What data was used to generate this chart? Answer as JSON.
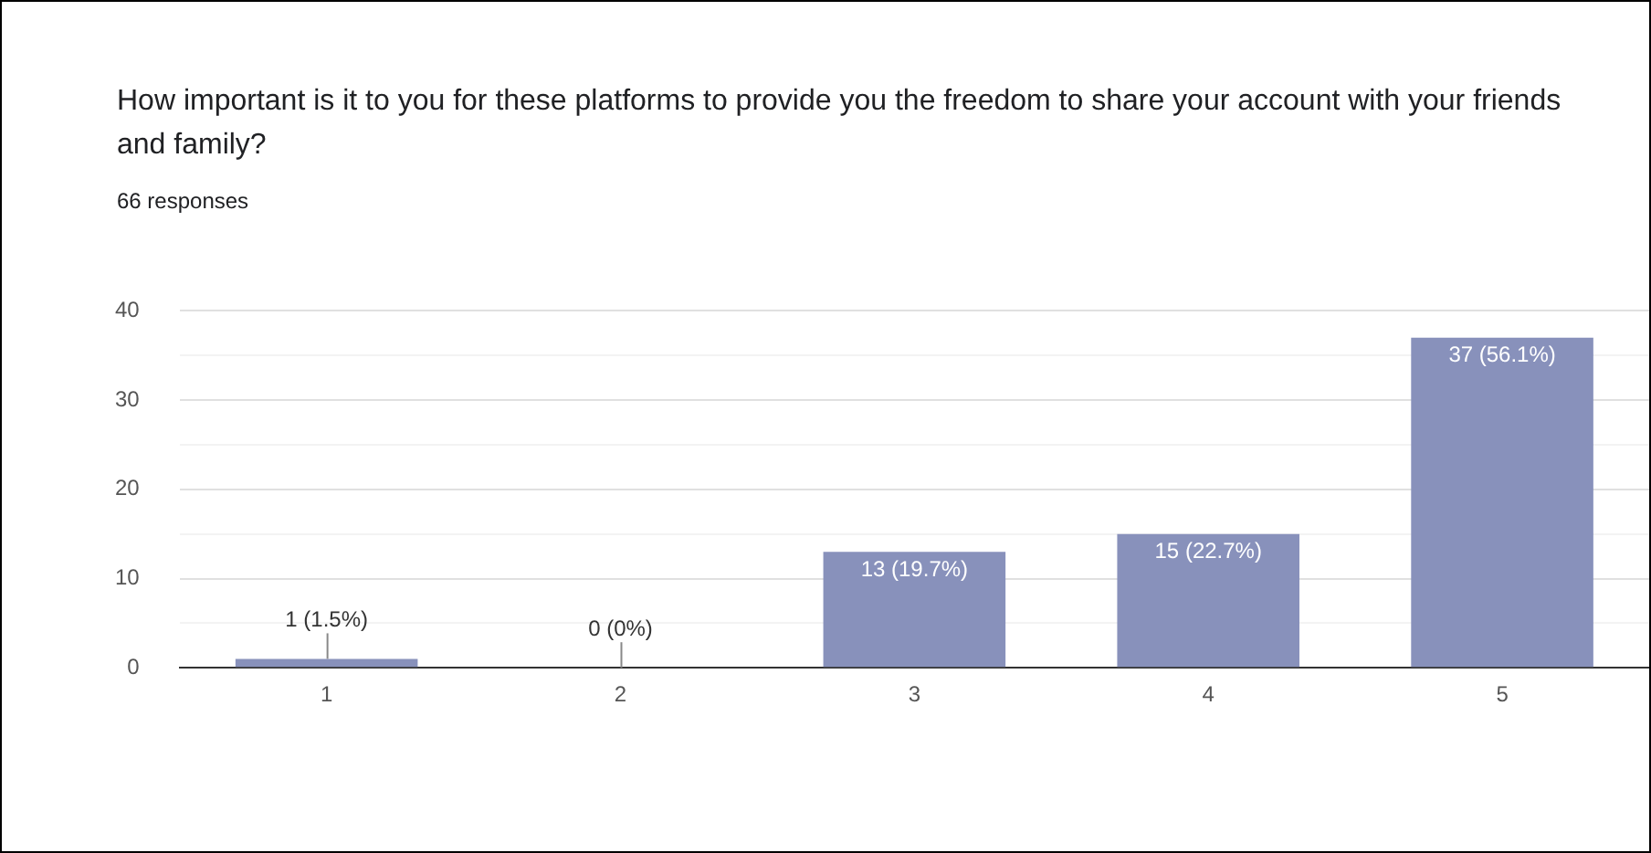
{
  "chart_data": {
    "type": "bar",
    "title": "How important is it to you for these platforms to provide you the freedom to share your account with your friends and family?",
    "subtitle": "66 responses",
    "categories": [
      "1",
      "2",
      "3",
      "4",
      "5"
    ],
    "values": [
      1,
      0,
      13,
      15,
      37
    ],
    "value_labels": [
      "1 (1.5%)",
      "0 (0%)",
      "13 (19.7%)",
      "15 (22.7%)",
      "37 (56.1%)"
    ],
    "color": "#8891bb",
    "ylim": [
      0,
      40
    ],
    "yticks": [
      0,
      {
        "value": 5,
        "label": null
      },
      10,
      {
        "value": 15,
        "label": null
      },
      20,
      {
        "value": 25,
        "label": null
      },
      30,
      {
        "value": 35,
        "label": null
      },
      40
    ],
    "grid": "y",
    "legend": false
  }
}
